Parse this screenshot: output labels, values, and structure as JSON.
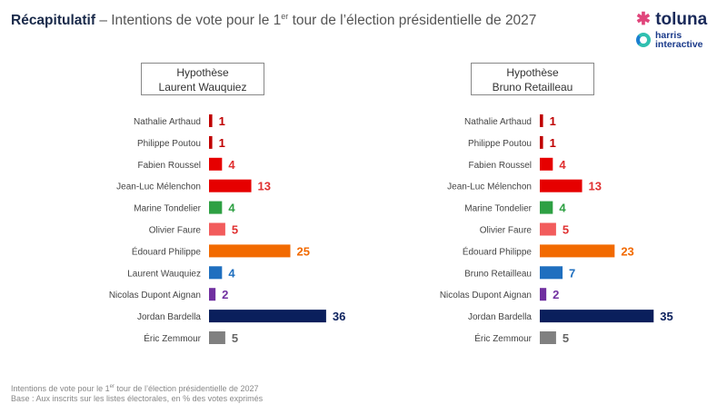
{
  "header": {
    "title_bold": "Récapitulatif",
    "title_rest_1": " – Intentions de vote pour le 1",
    "title_sup": "er",
    "title_rest_2": " tour de l’élection présidentielle de 2027"
  },
  "logo": {
    "brand": "toluna",
    "sub1": "harris",
    "sub2": "interactive"
  },
  "footer": {
    "line1_a": "Intentions de vote pour le 1",
    "line1_sup": "er",
    "line1_b": " tour de l’élection présidentielle de 2027",
    "line2": "Base : Aux inscrits sur les listes électorales, en % des votes exprimés"
  },
  "chart_data": [
    {
      "type": "bar",
      "orientation": "horizontal",
      "title_line1": "Hypothèse",
      "title_line2": "Laurent Wauquiez",
      "categories": [
        "Nathalie Arthaud",
        "Philippe Poutou",
        "Fabien Roussel",
        "Jean-Luc Mélenchon",
        "Marine Tondelier",
        "Olivier Faure",
        "Édouard Philippe",
        "Laurent Wauquiez",
        "Nicolas Dupont Aignan",
        "Jordan Bardella",
        "Éric Zemmour"
      ],
      "values": [
        1,
        1,
        4,
        13,
        4,
        5,
        25,
        4,
        2,
        36,
        5
      ],
      "colors": [
        "#c00000",
        "#c00000",
        "#e60000",
        "#e60000",
        "#2ea043",
        "#f25c5c",
        "#f26a00",
        "#1f6fbf",
        "#7030a0",
        "#0a1f5c",
        "#808080"
      ],
      "label_colors": [
        "#c00000",
        "#c00000",
        "#e03030",
        "#e03030",
        "#2ea043",
        "#e03030",
        "#f26a00",
        "#1f6fbf",
        "#7030a0",
        "#0a1f5c",
        "#666666"
      ]
    },
    {
      "type": "bar",
      "orientation": "horizontal",
      "title_line1": "Hypothèse",
      "title_line2": "Bruno Retailleau",
      "categories": [
        "Nathalie Arthaud",
        "Philippe Poutou",
        "Fabien Roussel",
        "Jean-Luc Mélenchon",
        "Marine Tondelier",
        "Olivier Faure",
        "Édouard Philippe",
        "Bruno Retailleau",
        "Nicolas Dupont Aignan",
        "Jordan Bardella",
        "Éric Zemmour"
      ],
      "values": [
        1,
        1,
        4,
        13,
        4,
        5,
        23,
        7,
        2,
        35,
        5
      ],
      "colors": [
        "#c00000",
        "#c00000",
        "#e60000",
        "#e60000",
        "#2ea043",
        "#f25c5c",
        "#f26a00",
        "#1f6fbf",
        "#7030a0",
        "#0a1f5c",
        "#808080"
      ],
      "label_colors": [
        "#c00000",
        "#c00000",
        "#e03030",
        "#e03030",
        "#2ea043",
        "#e03030",
        "#f26a00",
        "#1f6fbf",
        "#7030a0",
        "#0a1f5c",
        "#666666"
      ]
    }
  ]
}
